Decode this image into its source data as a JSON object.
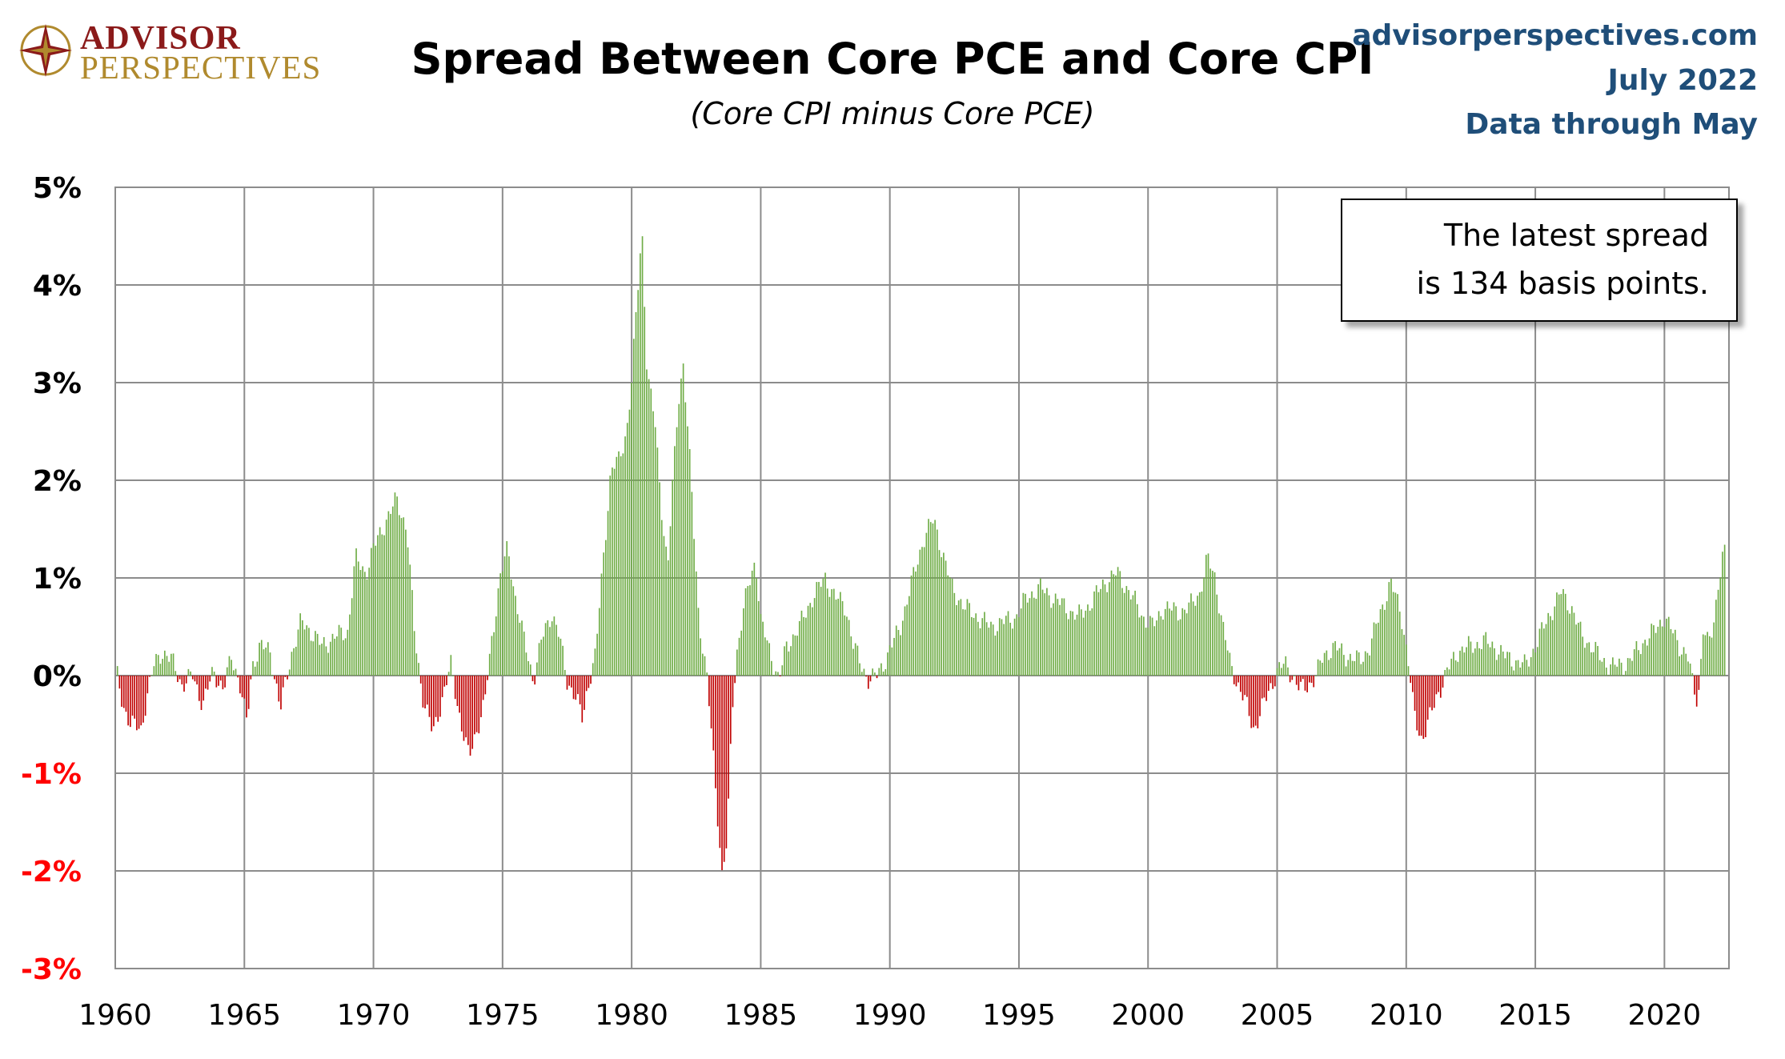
{
  "logo": {
    "line1": "ADVISOR",
    "line2": "PERSPECTIVES",
    "icon": "compass-star-icon"
  },
  "header": {
    "title": "Spread Between Core PCE and Core CPI",
    "subtitle": "(Core CPI minus Core PCE)",
    "source": "advisorperspectives.com",
    "date": "July 2022",
    "data_note": "Data through May"
  },
  "callout": {
    "line1": "The latest spread",
    "line2": "is 134 basis points."
  },
  "colors": {
    "positive": "#70ad47",
    "negative": "#c00000",
    "grid": "#8c8c8c",
    "negative_label": "#ff0000",
    "header_blue": "#1f4e79"
  },
  "chart_data": {
    "type": "bar",
    "title": "Spread Between Core PCE and Core CPI",
    "subtitle": "(Core CPI minus Core PCE)",
    "frequency": "monthly",
    "x_start": "1960-01",
    "x_end": "2022-05",
    "ylim": [
      -3,
      5
    ],
    "y_unit": "%",
    "grid": true,
    "x_ticks": [
      "1960",
      "1965",
      "1970",
      "1975",
      "1980",
      "1985",
      "1990",
      "1995",
      "2000",
      "2005",
      "2010",
      "2015",
      "2020"
    ],
    "y_ticks": [
      "5%",
      "4%",
      "3%",
      "2%",
      "1%",
      "0%",
      "-1%",
      "-2%",
      "-3%"
    ],
    "latest_value": 1.34,
    "anchors": [
      [
        1960.0,
        0.15
      ],
      [
        1960.1,
        -0.05
      ],
      [
        1960.3,
        -0.3
      ],
      [
        1960.6,
        -0.5
      ],
      [
        1961.0,
        -0.55
      ],
      [
        1961.2,
        -0.25
      ],
      [
        1961.5,
        0.1
      ],
      [
        1961.8,
        0.25
      ],
      [
        1962.2,
        0.15
      ],
      [
        1962.6,
        -0.1
      ],
      [
        1963.0,
        0.0
      ],
      [
        1963.4,
        -0.3
      ],
      [
        1963.8,
        0.05
      ],
      [
        1964.2,
        -0.15
      ],
      [
        1964.5,
        0.2
      ],
      [
        1964.8,
        -0.05
      ],
      [
        1965.1,
        -0.5
      ],
      [
        1965.3,
        0.1
      ],
      [
        1965.6,
        0.3
      ],
      [
        1966.0,
        0.25
      ],
      [
        1966.4,
        -0.35
      ],
      [
        1966.8,
        0.2
      ],
      [
        1967.2,
        0.55
      ],
      [
        1967.6,
        0.45
      ],
      [
        1968.0,
        0.3
      ],
      [
        1968.5,
        0.4
      ],
      [
        1969.0,
        0.45
      ],
      [
        1969.3,
        1.2
      ],
      [
        1969.7,
        1.05
      ],
      [
        1970.0,
        1.3
      ],
      [
        1970.5,
        1.6
      ],
      [
        1970.9,
        1.8
      ],
      [
        1971.3,
        1.5
      ],
      [
        1971.6,
        0.4
      ],
      [
        1971.9,
        -0.2
      ],
      [
        1972.3,
        -0.6
      ],
      [
        1972.7,
        -0.2
      ],
      [
        1973.0,
        0.1
      ],
      [
        1973.4,
        -0.5
      ],
      [
        1973.7,
        -0.85
      ],
      [
        1974.0,
        -0.55
      ],
      [
        1974.3,
        -0.3
      ],
      [
        1974.6,
        0.4
      ],
      [
        1974.9,
        1.0
      ],
      [
        1975.2,
        1.3
      ],
      [
        1975.5,
        0.8
      ],
      [
        1975.8,
        0.4
      ],
      [
        1976.2,
        -0.05
      ],
      [
        1976.5,
        0.35
      ],
      [
        1976.9,
        0.65
      ],
      [
        1977.2,
        0.4
      ],
      [
        1977.5,
        -0.05
      ],
      [
        1977.8,
        -0.2
      ],
      [
        1978.1,
        -0.45
      ],
      [
        1978.3,
        -0.1
      ],
      [
        1978.6,
        0.2
      ],
      [
        1978.9,
        1.2
      ],
      [
        1979.2,
        2.1
      ],
      [
        1979.5,
        2.2
      ],
      [
        1979.8,
        2.5
      ],
      [
        1980.0,
        3.0
      ],
      [
        1980.2,
        3.8
      ],
      [
        1980.4,
        4.6
      ],
      [
        1980.6,
        3.1
      ],
      [
        1980.9,
        2.6
      ],
      [
        1981.2,
        1.6
      ],
      [
        1981.4,
        1.1
      ],
      [
        1981.6,
        2.0
      ],
      [
        1981.8,
        2.8
      ],
      [
        1982.0,
        3.2
      ],
      [
        1982.3,
        2.0
      ],
      [
        1982.6,
        0.6
      ],
      [
        1982.9,
        0.0
      ],
      [
        1983.1,
        -0.6
      ],
      [
        1983.3,
        -1.3
      ],
      [
        1983.5,
        -2.05
      ],
      [
        1983.7,
        -1.7
      ],
      [
        1983.9,
        -0.3
      ],
      [
        1984.1,
        0.3
      ],
      [
        1984.5,
        0.9
      ],
      [
        1984.8,
        1.2
      ],
      [
        1985.0,
        0.55
      ],
      [
        1985.3,
        0.3
      ],
      [
        1985.7,
        -0.05
      ],
      [
        1986.0,
        0.3
      ],
      [
        1986.5,
        0.5
      ],
      [
        1987.0,
        0.8
      ],
      [
        1987.5,
        1.0
      ],
      [
        1987.9,
        0.8
      ],
      [
        1988.3,
        0.7
      ],
      [
        1988.6,
        0.3
      ],
      [
        1988.9,
        0.1
      ],
      [
        1989.2,
        -0.05
      ],
      [
        1989.5,
        0.0
      ],
      [
        1989.9,
        0.2
      ],
      [
        1990.4,
        0.5
      ],
      [
        1990.9,
        1.0
      ],
      [
        1991.3,
        1.4
      ],
      [
        1991.7,
        1.6
      ],
      [
        1992.0,
        1.3
      ],
      [
        1992.4,
        0.9
      ],
      [
        1992.9,
        0.7
      ],
      [
        1993.4,
        0.6
      ],
      [
        1993.9,
        0.5
      ],
      [
        1994.4,
        0.55
      ],
      [
        1994.9,
        0.6
      ],
      [
        1995.3,
        0.8
      ],
      [
        1995.8,
        0.9
      ],
      [
        1996.3,
        0.8
      ],
      [
        1996.8,
        0.7
      ],
      [
        1997.3,
        0.6
      ],
      [
        1997.8,
        0.75
      ],
      [
        1998.3,
        0.95
      ],
      [
        1998.8,
        1.05
      ],
      [
        1999.3,
        0.85
      ],
      [
        1999.8,
        0.6
      ],
      [
        2000.2,
        0.5
      ],
      [
        2000.6,
        0.7
      ],
      [
        2001.2,
        0.65
      ],
      [
        2001.6,
        0.7
      ],
      [
        2002.0,
        0.85
      ],
      [
        2002.3,
        1.2
      ],
      [
        2002.6,
        1.0
      ],
      [
        2002.9,
        0.5
      ],
      [
        2003.2,
        0.1
      ],
      [
        2003.5,
        -0.1
      ],
      [
        2003.8,
        -0.3
      ],
      [
        2004.1,
        -0.55
      ],
      [
        2004.4,
        -0.35
      ],
      [
        2004.7,
        -0.15
      ],
      [
        2005.0,
        0.05
      ],
      [
        2005.3,
        0.12
      ],
      [
        2005.6,
        0.0
      ],
      [
        2005.9,
        -0.15
      ],
      [
        2006.2,
        -0.1
      ],
      [
        2006.5,
        0.0
      ],
      [
        2006.8,
        0.2
      ],
      [
        2007.2,
        0.3
      ],
      [
        2007.7,
        0.2
      ],
      [
        2008.2,
        0.15
      ],
      [
        2008.6,
        0.3
      ],
      [
        2009.0,
        0.65
      ],
      [
        2009.4,
        0.95
      ],
      [
        2009.8,
        0.65
      ],
      [
        2010.1,
        0.1
      ],
      [
        2010.3,
        -0.4
      ],
      [
        2010.6,
        -0.65
      ],
      [
        2010.9,
        -0.45
      ],
      [
        2011.2,
        -0.2
      ],
      [
        2011.6,
        0.05
      ],
      [
        2012.0,
        0.25
      ],
      [
        2012.5,
        0.3
      ],
      [
        2013.0,
        0.35
      ],
      [
        2013.4,
        0.3
      ],
      [
        2013.8,
        0.2
      ],
      [
        2014.2,
        0.15
      ],
      [
        2014.6,
        0.1
      ],
      [
        2015.0,
        0.3
      ],
      [
        2015.5,
        0.6
      ],
      [
        2016.0,
        0.85
      ],
      [
        2016.4,
        0.7
      ],
      [
        2016.8,
        0.4
      ],
      [
        2017.2,
        0.3
      ],
      [
        2017.6,
        0.15
      ],
      [
        2018.0,
        0.1
      ],
      [
        2018.4,
        0.1
      ],
      [
        2018.8,
        0.2
      ],
      [
        2019.2,
        0.35
      ],
      [
        2019.6,
        0.45
      ],
      [
        2020.0,
        0.6
      ],
      [
        2020.3,
        0.45
      ],
      [
        2020.6,
        0.3
      ],
      [
        2020.9,
        0.2
      ],
      [
        2021.1,
        -0.1
      ],
      [
        2021.3,
        -0.28
      ],
      [
        2021.5,
        0.5
      ],
      [
        2021.7,
        0.3
      ],
      [
        2021.9,
        0.5
      ],
      [
        2022.1,
        1.0
      ],
      [
        2022.3,
        1.3
      ],
      [
        2022.4,
        1.34
      ]
    ]
  }
}
